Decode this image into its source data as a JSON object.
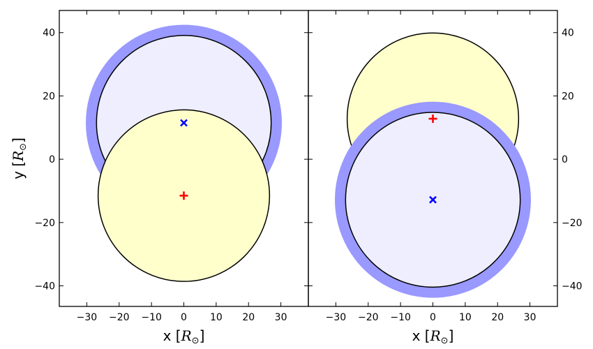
{
  "chart_data": [
    {
      "type": "scatter",
      "panel": "left",
      "xlabel": {
        "prefix": "x [",
        "var": "R",
        "sub": "⊙",
        "suffix": "]"
      },
      "ylabel": {
        "prefix": "y [",
        "var": "R",
        "sub": "⊙",
        "suffix": "]"
      },
      "xlim": [
        -38.5,
        38.5
      ],
      "ylim": [
        -46.5,
        47
      ],
      "xticks": [
        -30,
        -20,
        -10,
        0,
        10,
        20,
        30
      ],
      "yticks": [
        -40,
        -20,
        0,
        20,
        40
      ],
      "ytick_side": "left",
      "circles": [
        {
          "name": "blue-star",
          "cx": 0,
          "cy": 11.5,
          "r": 27,
          "fill": "#eeeeff",
          "ring_color": "#9999ff",
          "ring_width": 3.3,
          "z": 1
        },
        {
          "name": "yellow-star",
          "cx": 0,
          "cy": -11.5,
          "r": 26.5,
          "fill": "#ffffcc",
          "ring_color": null,
          "ring_width": 0,
          "z": 2
        }
      ],
      "markers": [
        {
          "name": "blue-x-marker",
          "symbol": "x",
          "x": 0,
          "y": 11.5,
          "color": "#0000ff"
        },
        {
          "name": "red-plus-marker",
          "symbol": "+",
          "x": 0,
          "y": -11.5,
          "color": "#ff0000"
        }
      ]
    },
    {
      "type": "scatter",
      "panel": "right",
      "xlabel": {
        "prefix": "x [",
        "var": "R",
        "sub": "⊙",
        "suffix": "]"
      },
      "xlim": [
        -38.5,
        38.5
      ],
      "ylim": [
        -46.5,
        47
      ],
      "xticks": [
        -30,
        -20,
        -10,
        0,
        10,
        20,
        30
      ],
      "yticks": [
        -40,
        -20,
        0,
        20,
        40
      ],
      "ytick_side": "right",
      "circles": [
        {
          "name": "yellow-star",
          "cx": 0,
          "cy": 12.8,
          "r": 26.5,
          "fill": "#ffffcc",
          "ring_color": null,
          "ring_width": 0,
          "z": 1
        },
        {
          "name": "blue-star",
          "cx": 0,
          "cy": -12.8,
          "r": 27,
          "fill": "#eeeeff",
          "ring_color": "#9999ff",
          "ring_width": 3.3,
          "z": 2
        }
      ],
      "markers": [
        {
          "name": "red-plus-marker",
          "symbol": "+",
          "x": 0,
          "y": 12.8,
          "color": "#ff0000"
        },
        {
          "name": "blue-x-marker",
          "symbol": "x",
          "x": 0,
          "y": -12.8,
          "color": "#0000ff"
        }
      ]
    }
  ]
}
